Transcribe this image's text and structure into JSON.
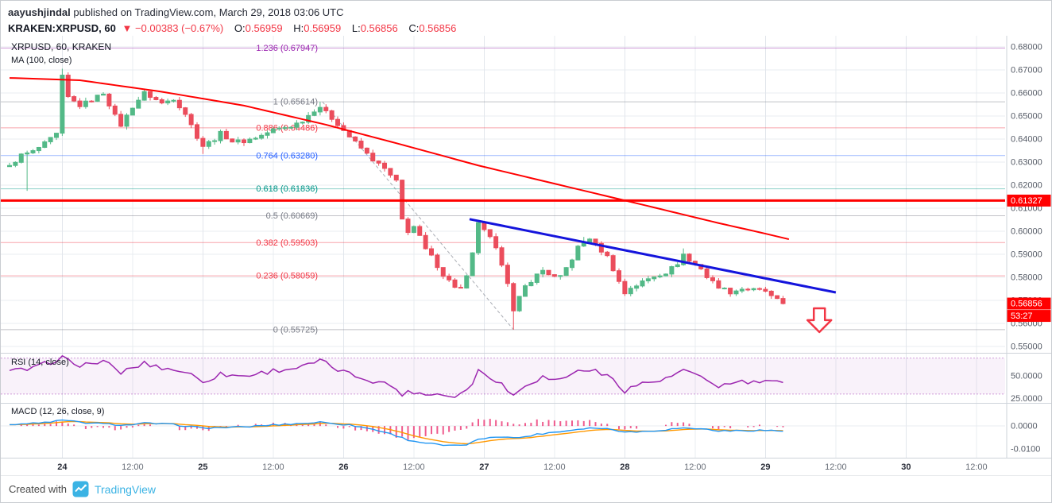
{
  "header": {
    "author": "aayushjindal",
    "publish_info": "published on TradingView.com, March 29, 2018 03:06 UTC",
    "symbol_title": "KRAKEN:XRPUSD, 60",
    "change_arrow": "▼",
    "change_text": "−0.00383 (−0.67%)",
    "ohlc": [
      {
        "label": "O:",
        "value": "0.56959"
      },
      {
        "label": "H:",
        "value": "0.56959"
      },
      {
        "label": "L:",
        "value": "0.56856"
      },
      {
        "label": "C:",
        "value": "0.56856"
      }
    ]
  },
  "main_pane": {
    "legend_line1": "XRPUSD, 60, KRAKEN",
    "legend_line2": "MA (100, close)"
  },
  "rsi_pane": {
    "legend": "RSI (14, close)"
  },
  "macd_pane": {
    "legend": "MACD (12, 26, close, 9)"
  },
  "footer": {
    "created_with": "Created with",
    "brand": "TradingView"
  },
  "chart_data": {
    "type": "candlestick",
    "symbol": "KRAKEN:XRPUSD",
    "interval": "60",
    "ylim": [
      0.5472,
      0.6848
    ],
    "candle_count": 133,
    "last_price": 0.56856,
    "last_price_label": "0.56856",
    "countdown": "53:27",
    "up_color": "#53b987",
    "down_color": "#eb4d5c",
    "price_ticks": [
      {
        "label": "0.68000",
        "value": 0.68
      },
      {
        "label": "0.67000",
        "value": 0.67
      },
      {
        "label": "0.66000",
        "value": 0.66
      },
      {
        "label": "0.65000",
        "value": 0.65
      },
      {
        "label": "0.64000",
        "value": 0.64
      },
      {
        "label": "0.63000",
        "value": 0.63
      },
      {
        "label": "0.62000",
        "value": 0.62
      },
      {
        "label": "0.61000",
        "value": 0.61
      },
      {
        "label": "0.60000",
        "value": 0.6
      },
      {
        "label": "0.59000",
        "value": 0.59
      },
      {
        "label": "0.58000",
        "value": 0.58
      },
      {
        "label": "0.57000",
        "value": 0.57
      },
      {
        "label": "0.56000",
        "value": 0.56
      },
      {
        "label": "0.55000",
        "value": 0.55
      }
    ],
    "time_ticks": [
      {
        "label": "24",
        "idx": 9,
        "major": true
      },
      {
        "label": "12:00",
        "idx": 21,
        "major": false
      },
      {
        "label": "25",
        "idx": 33,
        "major": true
      },
      {
        "label": "12:00",
        "idx": 45,
        "major": false
      },
      {
        "label": "26",
        "idx": 57,
        "major": true
      },
      {
        "label": "12:00",
        "idx": 69,
        "major": false
      },
      {
        "label": "27",
        "idx": 81,
        "major": true
      },
      {
        "label": "12:00",
        "idx": 93,
        "major": false
      },
      {
        "label": "28",
        "idx": 105,
        "major": true
      },
      {
        "label": "12:00",
        "idx": 117,
        "major": false
      },
      {
        "label": "29",
        "idx": 129,
        "major": true
      },
      {
        "label": "12:00",
        "idx": 141,
        "major": false
      },
      {
        "label": "30",
        "idx": 153,
        "major": true
      },
      {
        "label": "12:00",
        "idx": 165,
        "major": false
      }
    ],
    "close_keyframes": [
      [
        0,
        0.628
      ],
      [
        2,
        0.633
      ],
      [
        4,
        0.6345
      ],
      [
        6,
        0.638
      ],
      [
        8,
        0.642
      ],
      [
        9,
        0.667
      ],
      [
        10,
        0.658
      ],
      [
        12,
        0.6545
      ],
      [
        14,
        0.657
      ],
      [
        16,
        0.66
      ],
      [
        18,
        0.65
      ],
      [
        19,
        0.646
      ],
      [
        21,
        0.654
      ],
      [
        23,
        0.66
      ],
      [
        26,
        0.6555
      ],
      [
        28,
        0.6575
      ],
      [
        30,
        0.651
      ],
      [
        32,
        0.641
      ],
      [
        33,
        0.637
      ],
      [
        35,
        0.64
      ],
      [
        36,
        0.6425
      ],
      [
        38,
        0.639
      ],
      [
        40,
        0.639
      ],
      [
        43,
        0.6415
      ],
      [
        45,
        0.644
      ],
      [
        48,
        0.6455
      ],
      [
        50,
        0.648
      ],
      [
        52,
        0.6525
      ],
      [
        53,
        0.654
      ],
      [
        54,
        0.6515
      ],
      [
        55,
        0.649
      ],
      [
        56,
        0.6465
      ],
      [
        58,
        0.641
      ],
      [
        60,
        0.636
      ],
      [
        62,
        0.631
      ],
      [
        64,
        0.627
      ],
      [
        65,
        0.624
      ],
      [
        66,
        0.6215
      ],
      [
        67,
        0.605
      ],
      [
        68,
        0.6
      ],
      [
        69,
        0.602
      ],
      [
        70,
        0.5975
      ],
      [
        71,
        0.592
      ],
      [
        72,
        0.589
      ],
      [
        73,
        0.585
      ],
      [
        74,
        0.581
      ],
      [
        75,
        0.5785
      ],
      [
        76,
        0.576
      ],
      [
        77,
        0.575
      ],
      [
        78,
        0.58
      ],
      [
        79,
        0.59
      ],
      [
        80,
        0.604
      ],
      [
        81,
        0.6
      ],
      [
        82,
        0.597
      ],
      [
        83,
        0.592
      ],
      [
        84,
        0.586
      ],
      [
        85,
        0.578
      ],
      [
        86,
        0.565
      ],
      [
        87,
        0.571
      ],
      [
        88,
        0.576
      ],
      [
        89,
        0.5785
      ],
      [
        90,
        0.581
      ],
      [
        91,
        0.583
      ],
      [
        92,
        0.5815
      ],
      [
        93,
        0.58
      ],
      [
        94,
        0.58
      ],
      [
        95,
        0.584
      ],
      [
        96,
        0.588
      ],
      [
        97,
        0.593
      ],
      [
        98,
        0.595
      ],
      [
        99,
        0.597
      ],
      [
        100,
        0.594
      ],
      [
        101,
        0.5915
      ],
      [
        102,
        0.589
      ],
      [
        103,
        0.5835
      ],
      [
        104,
        0.578
      ],
      [
        105,
        0.573
      ],
      [
        106,
        0.5755
      ],
      [
        107,
        0.5765
      ],
      [
        108,
        0.578
      ],
      [
        110,
        0.5805
      ],
      [
        112,
        0.582
      ],
      [
        114,
        0.586
      ],
      [
        115,
        0.59
      ],
      [
        116,
        0.587
      ],
      [
        117,
        0.5855
      ],
      [
        118,
        0.584
      ],
      [
        119,
        0.58
      ],
      [
        120,
        0.578
      ],
      [
        121,
        0.576
      ],
      [
        123,
        0.5735
      ],
      [
        125,
        0.575
      ],
      [
        127,
        0.5745
      ],
      [
        129,
        0.574
      ],
      [
        130,
        0.5715
      ],
      [
        131,
        0.57
      ],
      [
        132,
        0.56856
      ]
    ],
    "pinned_extremes": [
      {
        "idx": 3,
        "low": 0.6175
      },
      {
        "idx": 9,
        "high": 0.6705
      },
      {
        "idx": 33,
        "low": 0.6335
      },
      {
        "idx": 53,
        "high": 0.65614
      },
      {
        "idx": 68,
        "low": 0.5985
      },
      {
        "idx": 86,
        "low": 0.55725
      },
      {
        "idx": 98,
        "high": 0.5975
      },
      {
        "idx": 115,
        "high": 0.5925
      }
    ],
    "ma": {
      "label": "MA (100, close)",
      "color": "#ff0000",
      "keyframes": [
        [
          0,
          0.6665
        ],
        [
          12,
          0.6655
        ],
        [
          26,
          0.6605
        ],
        [
          40,
          0.6545
        ],
        [
          54,
          0.6462
        ],
        [
          67,
          0.6375
        ],
        [
          80,
          0.6285
        ],
        [
          94,
          0.62
        ],
        [
          108,
          0.6115
        ],
        [
          121,
          0.6035
        ],
        [
          128,
          0.5995
        ],
        [
          133,
          0.5965
        ]
      ]
    },
    "resistance": {
      "price": 0.61327,
      "label": "0.61327",
      "color": "#ff0000"
    },
    "trendline": {
      "color": "#1414dc",
      "from": {
        "idx": 78.5,
        "price": 0.6052
      },
      "to": {
        "idx": 141,
        "price": 0.5734
      }
    },
    "fib_diagonal": {
      "from": {
        "idx": 53.4,
        "price": 0.65614
      },
      "to": {
        "idx": 86,
        "price": 0.55725
      }
    },
    "fib_levels": [
      {
        "label": "1.236 (0.67947)",
        "price": 0.67947,
        "color": "#9c27b0"
      },
      {
        "label": "1 (0.65614)",
        "price": 0.65614,
        "color": "#787b86"
      },
      {
        "label": "0.886 (0.64486)",
        "price": 0.64486,
        "color": "#f23645"
      },
      {
        "label": "0.764 (0.63280)",
        "price": 0.6328,
        "color": "#2962ff"
      },
      {
        "label": "0.618 (0.61836)",
        "price": 0.61836,
        "color": "#009688"
      },
      {
        "label": "0.5 (0.60669)",
        "price": 0.60669,
        "color": "#787b86"
      },
      {
        "label": "0.382 (0.59503)",
        "price": 0.59503,
        "color": "#f23645"
      },
      {
        "label": "0.236 (0.58059)",
        "price": 0.58059,
        "color": "#f23645"
      },
      {
        "label": "0 (0.55725)",
        "price": 0.55725,
        "color": "#787b86"
      }
    ],
    "arrow": {
      "idx": 138.2,
      "top_price": 0.5665,
      "neck_price": 0.5614,
      "tip_price": 0.5562,
      "color": "#f23645"
    },
    "rsi": {
      "ylim": [
        21,
        75
      ],
      "band": [
        30,
        70
      ],
      "color": "#9c27b0",
      "ticks": [
        {
          "label": "50.0000",
          "value": 50
        },
        {
          "label": "25.0000",
          "value": 25
        }
      ],
      "keyframes": [
        [
          0,
          55
        ],
        [
          4,
          58
        ],
        [
          9,
          71
        ],
        [
          11,
          62
        ],
        [
          14,
          64
        ],
        [
          16,
          66
        ],
        [
          19,
          54
        ],
        [
          23,
          64
        ],
        [
          27,
          58
        ],
        [
          30,
          55
        ],
        [
          33,
          44
        ],
        [
          36,
          52
        ],
        [
          40,
          50
        ],
        [
          45,
          56
        ],
        [
          50,
          60
        ],
        [
          53,
          67
        ],
        [
          55,
          60
        ],
        [
          58,
          52
        ],
        [
          62,
          45
        ],
        [
          65,
          40
        ],
        [
          67,
          30
        ],
        [
          69,
          33
        ],
        [
          71,
          29
        ],
        [
          73,
          31
        ],
        [
          75,
          28
        ],
        [
          77,
          30
        ],
        [
          79,
          42
        ],
        [
          80,
          56
        ],
        [
          82,
          50
        ],
        [
          84,
          41
        ],
        [
          86,
          28
        ],
        [
          88,
          41
        ],
        [
          90,
          46
        ],
        [
          91,
          49
        ],
        [
          93,
          45
        ],
        [
          95,
          50
        ],
        [
          97,
          55
        ],
        [
          99,
          58
        ],
        [
          101,
          52
        ],
        [
          103,
          47
        ],
        [
          105,
          34
        ],
        [
          107,
          40
        ],
        [
          109,
          43
        ],
        [
          112,
          46
        ],
        [
          115,
          57
        ],
        [
          117,
          50
        ],
        [
          119,
          45
        ],
        [
          121,
          39
        ],
        [
          123,
          41
        ],
        [
          125,
          44
        ],
        [
          127,
          42
        ],
        [
          129,
          45
        ],
        [
          131,
          42
        ],
        [
          132,
          41
        ]
      ]
    },
    "macd": {
      "ylim": [
        -0.0134,
        0.0097
      ],
      "macd_color": "#2196f3",
      "signal_color": "#ff9800",
      "hist_color": "#ec407a",
      "ticks": [
        {
          "label": "0.0000",
          "value": 0
        },
        {
          "label": "-0.0100",
          "value": -0.01
        }
      ],
      "keyframes": [
        [
          0,
          0.0008
        ],
        [
          5,
          0.0012
        ],
        [
          9,
          0.0025
        ],
        [
          13,
          0.0014
        ],
        [
          17,
          0.0008
        ],
        [
          20,
          0.0004
        ],
        [
          23,
          0.0012
        ],
        [
          27,
          0.0008
        ],
        [
          30,
          0.0001
        ],
        [
          33,
          -0.0009
        ],
        [
          37,
          -0.0006
        ],
        [
          40,
          -0.0004
        ],
        [
          44,
          0.0003
        ],
        [
          48,
          0.0009
        ],
        [
          51,
          0.0013
        ],
        [
          53,
          0.0017
        ],
        [
          56,
          0.001
        ],
        [
          58,
          0.0004
        ],
        [
          60,
          -0.0004
        ],
        [
          62,
          -0.0014
        ],
        [
          64,
          -0.0026
        ],
        [
          66,
          -0.0042
        ],
        [
          68,
          -0.006
        ],
        [
          70,
          -0.007
        ],
        [
          72,
          -0.0077
        ],
        [
          74,
          -0.0084
        ],
        [
          76,
          -0.0086
        ],
        [
          78,
          -0.008
        ],
        [
          80,
          -0.006
        ],
        [
          82,
          -0.0048
        ],
        [
          84,
          -0.0045
        ],
        [
          86,
          -0.0052
        ],
        [
          88,
          -0.0046
        ],
        [
          90,
          -0.0036
        ],
        [
          92,
          -0.0029
        ],
        [
          94,
          -0.0024
        ],
        [
          96,
          -0.0017
        ],
        [
          98,
          -0.001
        ],
        [
          100,
          -0.0008
        ],
        [
          102,
          -0.0012
        ],
        [
          104,
          -0.002
        ],
        [
          106,
          -0.0026
        ],
        [
          108,
          -0.0024
        ],
        [
          110,
          -0.002
        ],
        [
          112,
          -0.0016
        ],
        [
          114,
          -0.001
        ],
        [
          116,
          -0.0009
        ],
        [
          118,
          -0.0012
        ],
        [
          120,
          -0.0018
        ],
        [
          122,
          -0.0022
        ],
        [
          124,
          -0.0021
        ],
        [
          126,
          -0.0019
        ],
        [
          128,
          -0.0018
        ],
        [
          130,
          -0.002
        ],
        [
          132,
          -0.0022
        ]
      ]
    }
  }
}
